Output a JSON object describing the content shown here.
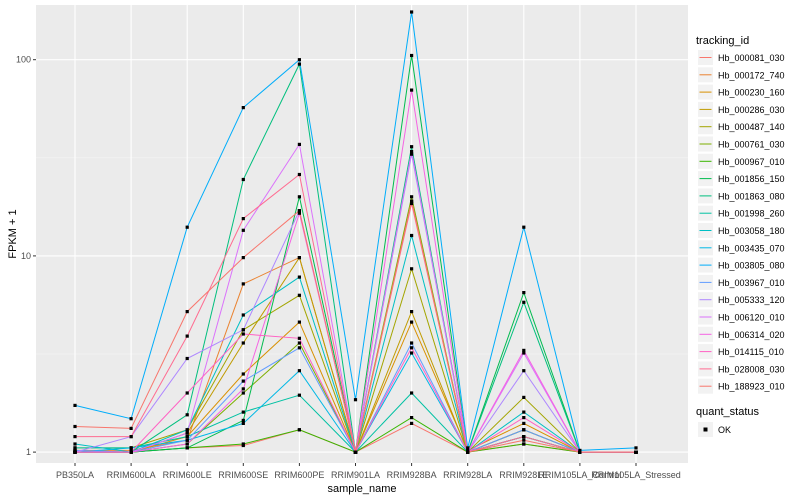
{
  "chart_data": {
    "type": "line",
    "xlabel": "sample_name",
    "ylabel": "FPKM + 1",
    "y_scale": "log10",
    "ylim": [
      0.88,
      190
    ],
    "y_ticks": [
      1,
      10,
      100
    ],
    "y_tick_labels": [
      "1",
      "10",
      "100"
    ],
    "grid": true,
    "categories": [
      "PB350LA",
      "RRIM600LA",
      "RRIM600LE",
      "RRIM600SE",
      "RRIM600PE",
      "RRIM901LA",
      "RRIM928BA",
      "RRIM928LA",
      "RRIM928LE",
      "RRIM105LA_Control",
      "RRIM105LA_Stressed"
    ],
    "legend": {
      "position": "right",
      "color_title": "tracking_id",
      "shape_title": "quant_status",
      "shape_entries": [
        "OK"
      ]
    },
    "series": [
      {
        "name": "Hb_000081_030",
        "color": "#F8766D",
        "values": [
          1.0,
          1.0,
          1.05,
          1.08,
          1.3,
          1.0,
          1.4,
          1.0,
          1.1,
          1.0,
          1.0
        ]
      },
      {
        "name": "Hb_000172_740",
        "color": "#EA8331",
        "values": [
          1.02,
          1.02,
          1.15,
          7.2,
          9.8,
          1.0,
          19.0,
          1.0,
          1.3,
          1.0,
          1.0
        ]
      },
      {
        "name": "Hb_000230_160",
        "color": "#D89000",
        "values": [
          1.0,
          1.0,
          1.2,
          2.5,
          4.6,
          1.0,
          4.6,
          1.02,
          1.4,
          1.0,
          1.0
        ]
      },
      {
        "name": "Hb_000286_030",
        "color": "#C09B00",
        "values": [
          1.02,
          1.0,
          1.25,
          3.6,
          9.8,
          1.0,
          5.2,
          1.0,
          1.2,
          1.0,
          1.0
        ]
      },
      {
        "name": "Hb_000487_140",
        "color": "#A3A500",
        "values": [
          1.05,
          1.05,
          1.3,
          4.2,
          6.3,
          1.0,
          8.6,
          1.0,
          1.9,
          1.0,
          1.0
        ]
      },
      {
        "name": "Hb_000761_030",
        "color": "#7CAE00",
        "values": [
          1.0,
          1.0,
          1.1,
          2.0,
          3.6,
          1.0,
          20.0,
          1.0,
          1.3,
          1.0,
          1.0
        ]
      },
      {
        "name": "Hb_000967_010",
        "color": "#39B600",
        "values": [
          1.0,
          1.0,
          1.05,
          1.1,
          1.3,
          1.0,
          1.5,
          1.0,
          1.1,
          1.0,
          1.0
        ]
      },
      {
        "name": "Hb_001856_150",
        "color": "#00BB4E",
        "values": [
          1.0,
          1.0,
          1.05,
          1.45,
          20.0,
          1.0,
          105.0,
          1.0,
          6.5,
          1.0,
          1.0
        ]
      },
      {
        "name": "Hb_001863_080",
        "color": "#00BF7D",
        "values": [
          1.0,
          1.0,
          1.55,
          24.5,
          95.0,
          1.0,
          36.0,
          1.0,
          5.8,
          1.0,
          1.0
        ]
      },
      {
        "name": "Hb_001998_260",
        "color": "#00C1A3",
        "values": [
          1.05,
          1.05,
          1.2,
          1.6,
          1.95,
          1.0,
          2.0,
          1.0,
          1.2,
          1.0,
          1.0
        ]
      },
      {
        "name": "Hb_003058_180",
        "color": "#00BFC4",
        "values": [
          1.1,
          1.0,
          1.3,
          5.0,
          7.8,
          1.0,
          12.7,
          1.0,
          1.6,
          1.0,
          1.0
        ]
      },
      {
        "name": "Hb_003435_070",
        "color": "#00B8E5",
        "values": [
          1.0,
          1.05,
          1.15,
          1.4,
          2.6,
          1.0,
          3.2,
          1.0,
          1.2,
          1.0,
          1.0
        ]
      },
      {
        "name": "Hb_003805_080",
        "color": "#00ADFA",
        "values": [
          1.73,
          1.48,
          14.0,
          57.0,
          100.0,
          1.85,
          175.0,
          1.05,
          14.0,
          1.02,
          1.05
        ]
      },
      {
        "name": "Hb_003967_010",
        "color": "#619CFF",
        "values": [
          1.02,
          1.0,
          1.15,
          2.3,
          3.4,
          1.0,
          3.6,
          1.0,
          1.3,
          1.0,
          1.0
        ]
      },
      {
        "name": "Hb_005333_120",
        "color": "#AE87FF",
        "values": [
          1.0,
          1.2,
          3.0,
          4.2,
          17.0,
          1.0,
          33.0,
          1.0,
          2.6,
          1.0,
          1.0
        ]
      },
      {
        "name": "Hb_006120_010",
        "color": "#DB72FB",
        "values": [
          1.0,
          1.0,
          1.25,
          13.5,
          37.0,
          1.0,
          34.0,
          1.0,
          3.2,
          1.0,
          1.0
        ]
      },
      {
        "name": "Hb_006314_020",
        "color": "#F564E3",
        "values": [
          1.0,
          1.0,
          1.1,
          2.1,
          16.5,
          1.0,
          70.0,
          1.0,
          3.3,
          1.0,
          1.0
        ]
      },
      {
        "name": "Hb_014115_010",
        "color": "#FF61C3",
        "values": [
          1.0,
          1.0,
          2.0,
          4.0,
          3.8,
          1.0,
          3.4,
          1.0,
          1.5,
          1.0,
          1.0
        ]
      },
      {
        "name": "Hb_028008_030",
        "color": "#FF6C91",
        "values": [
          1.2,
          1.2,
          3.9,
          15.5,
          26.0,
          1.0,
          18.5,
          1.0,
          1.2,
          1.0,
          1.0
        ]
      },
      {
        "name": "Hb_188923_010",
        "color": "#F8766D",
        "values": [
          1.35,
          1.32,
          5.2,
          9.8,
          17.0,
          1.0,
          19.0,
          1.0,
          1.15,
          1.0,
          1.0
        ]
      }
    ]
  }
}
